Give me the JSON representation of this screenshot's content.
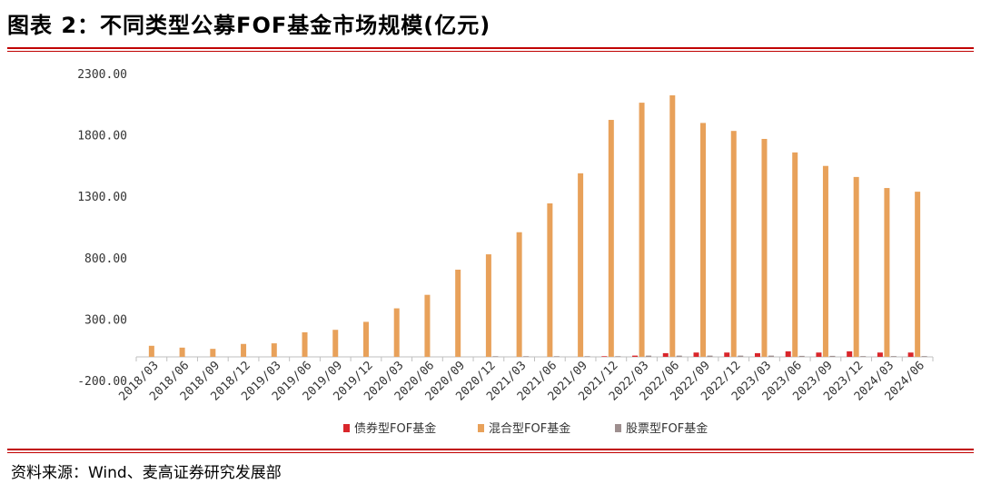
{
  "header": {
    "title": "图表 2：不同类型公募FOF基金市场规模(亿元)"
  },
  "footer": {
    "source": "资料来源：Wind、麦高证券研究发展部"
  },
  "colors": {
    "bond": "#d9262b",
    "mixed": "#e8a15a",
    "stock": "#9e8f8f",
    "rule": "#c00000"
  },
  "chart_data": {
    "type": "bar",
    "title": "",
    "xlabel": "",
    "ylabel": "",
    "ylim": [
      -200,
      2300
    ],
    "yticks": [
      -200,
      300,
      800,
      1300,
      1800,
      2300
    ],
    "ytick_labels": [
      "-200.00",
      "300.00",
      "800.00",
      "1300.00",
      "1800.00",
      "2300.00"
    ],
    "grid": false,
    "legend": "bottom",
    "categories": [
      "2018/03",
      "2018/06",
      "2018/09",
      "2018/12",
      "2019/03",
      "2019/06",
      "2019/09",
      "2019/12",
      "2020/03",
      "2020/06",
      "2020/09",
      "2020/12",
      "2021/03",
      "2021/06",
      "2021/09",
      "2021/12",
      "2022/03",
      "2022/06",
      "2022/09",
      "2022/12",
      "2023/03",
      "2023/06",
      "2023/09",
      "2023/12",
      "2024/03",
      "2024/06"
    ],
    "series": [
      {
        "name": "债券型FOF基金",
        "color": "#d9262b",
        "values": [
          0,
          0,
          0,
          0,
          0,
          0,
          0,
          0,
          0,
          0,
          0,
          0,
          0,
          0,
          0,
          5,
          10,
          30,
          35,
          35,
          30,
          45,
          35,
          45,
          35,
          35
        ]
      },
      {
        "name": "混合型FOF基金",
        "color": "#e8a15a",
        "values": [
          90,
          75,
          65,
          105,
          110,
          200,
          220,
          285,
          395,
          505,
          710,
          835,
          1015,
          1250,
          1495,
          1930,
          2070,
          2130,
          1905,
          1840,
          1775,
          1665,
          1555,
          1465,
          1375,
          1345
        ]
      },
      {
        "name": "股票型FOF基金",
        "color": "#9e8f8f",
        "values": [
          0,
          0,
          0,
          0,
          0,
          0,
          0,
          0,
          0,
          0,
          0,
          5,
          5,
          5,
          5,
          5,
          10,
          10,
          10,
          10,
          10,
          8,
          8,
          6,
          6,
          6
        ]
      }
    ]
  }
}
